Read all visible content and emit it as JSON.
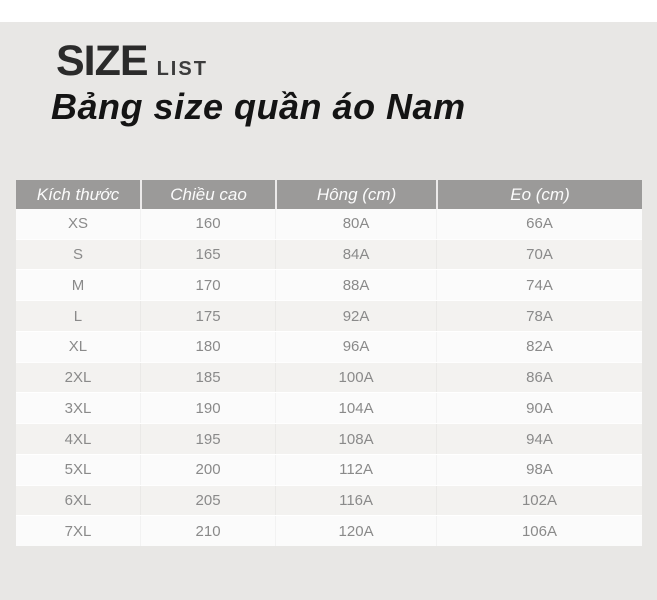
{
  "page": {
    "title_main": "SIZE",
    "title_sub": "LIST",
    "heading": "Bảng size quần áo Nam"
  },
  "table": {
    "columns": [
      "Kích thước",
      "Chiều cao",
      "Hông (cm)",
      "Eo (cm)"
    ],
    "rows": [
      [
        "XS",
        "160",
        "80A",
        "66A"
      ],
      [
        "S",
        "165",
        "84A",
        "70A"
      ],
      [
        "M",
        "170",
        "88A",
        "74A"
      ],
      [
        "L",
        "175",
        "92A",
        "78A"
      ],
      [
        "XL",
        "180",
        "96A",
        "82A"
      ],
      [
        "2XL",
        "185",
        "100A",
        "86A"
      ],
      [
        "3XL",
        "190",
        "104A",
        "90A"
      ],
      [
        "4XL",
        "195",
        "108A",
        "94A"
      ],
      [
        "5XL",
        "200",
        "112A",
        "98A"
      ],
      [
        "6XL",
        "205",
        "116A",
        "102A"
      ],
      [
        "7XL",
        "210",
        "120A",
        "106A"
      ]
    ]
  },
  "colors": {
    "panel_bg": "#e8e7e5",
    "header_bg": "#9b9a99",
    "header_text": "#fbfbfb",
    "row_odd": "#fbfbfb",
    "row_even": "#f3f2f0",
    "cell_text": "#8a8a8a",
    "title_text": "#2b2b2b",
    "heading_text": "#141414"
  }
}
